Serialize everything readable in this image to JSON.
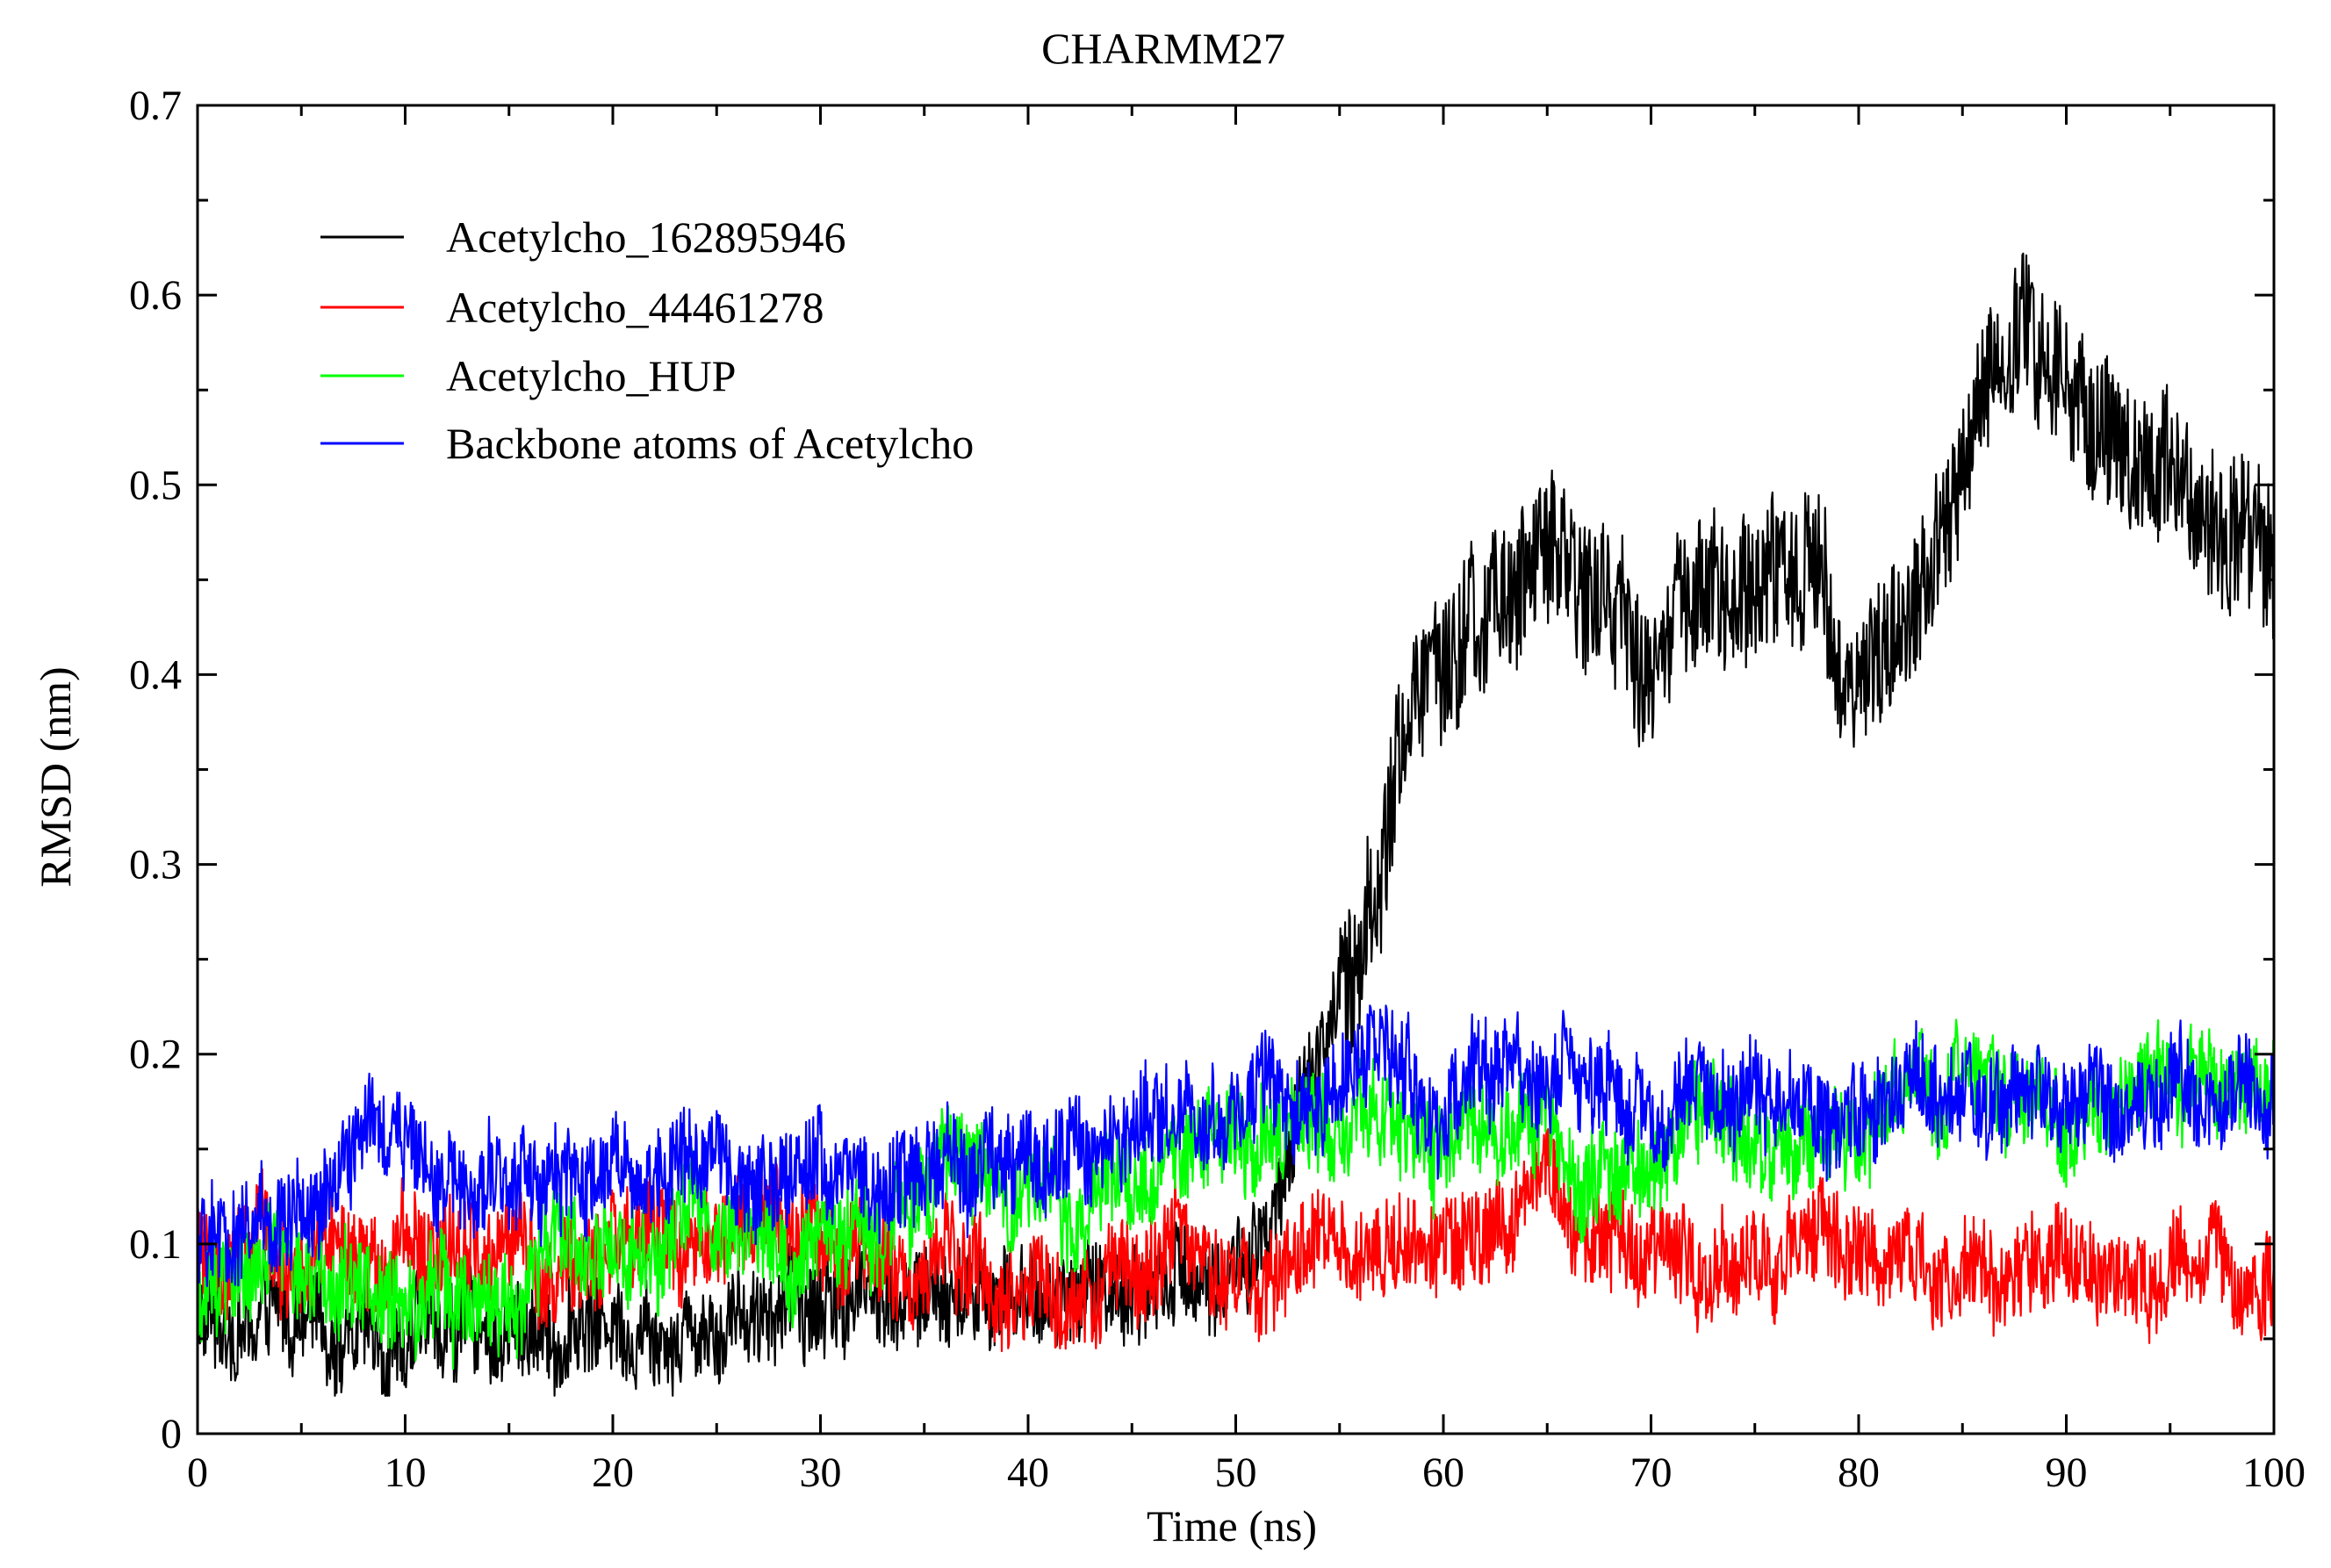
{
  "chart_data": {
    "type": "line",
    "title": "CHARMM27",
    "xlabel": "Time (ns)",
    "ylabel": "RMSD (nm)",
    "xlim": [
      0,
      100
    ],
    "ylim": [
      0,
      0.7
    ],
    "xticks": [
      "0",
      "10",
      "20",
      "30",
      "40",
      "50",
      "60",
      "70",
      "80",
      "90",
      "100"
    ],
    "yticks": [
      "0",
      "0.1",
      "0.2",
      "0.3",
      "0.4",
      "0.5",
      "0.6",
      "0.7"
    ],
    "legend_position": "top-left",
    "noise_amplitude_nm": 0.025,
    "series": [
      {
        "name": "Acetylcho_162895946",
        "color": "#000000",
        "x": [
          0,
          5,
          10,
          15,
          20,
          25,
          30,
          33,
          36,
          40,
          45,
          50,
          52,
          54,
          56,
          57,
          58,
          60,
          62,
          64,
          66,
          68,
          70,
          72,
          75,
          78,
          80,
          82,
          84,
          86,
          88,
          90,
          92,
          94,
          96,
          98,
          100
        ],
        "y": [
          0.06,
          0.05,
          0.06,
          0.055,
          0.06,
          0.07,
          0.075,
          0.08,
          0.07,
          0.07,
          0.08,
          0.09,
          0.1,
          0.2,
          0.27,
          0.3,
          0.37,
          0.41,
          0.42,
          0.46,
          0.45,
          0.44,
          0.4,
          0.44,
          0.45,
          0.46,
          0.4,
          0.43,
          0.46,
          0.55,
          0.57,
          0.55,
          0.53,
          0.52,
          0.5,
          0.49,
          0.47
        ]
      },
      {
        "name": "Acetylcho_44461278",
        "color": "#ff0000",
        "x": [
          0,
          5,
          10,
          15,
          20,
          25,
          30,
          35,
          40,
          45,
          50,
          55,
          60,
          65,
          70,
          75,
          80,
          85,
          90,
          95,
          100
        ],
        "y": [
          0.09,
          0.08,
          0.09,
          0.085,
          0.09,
          0.1,
          0.1,
          0.085,
          0.075,
          0.08,
          0.09,
          0.1,
          0.11,
          0.12,
          0.095,
          0.105,
          0.095,
          0.09,
          0.085,
          0.08,
          0.085
        ]
      },
      {
        "name": "Acetylcho_HUP",
        "color": "#00ff00",
        "x": [
          0,
          5,
          10,
          15,
          20,
          25,
          30,
          35,
          40,
          45,
          50,
          55,
          60,
          65,
          70,
          75,
          80,
          85,
          90,
          95,
          100
        ],
        "y": [
          0.07,
          0.08,
          0.085,
          0.08,
          0.09,
          0.1,
          0.11,
          0.12,
          0.13,
          0.14,
          0.15,
          0.155,
          0.16,
          0.155,
          0.14,
          0.15,
          0.16,
          0.17,
          0.16,
          0.18,
          0.18
        ]
      },
      {
        "name": "Backbone atoms of Acetylcho",
        "color": "#0000ff",
        "x": [
          0,
          3,
          6,
          8,
          10,
          15,
          18,
          20,
          25,
          30,
          35,
          40,
          45,
          50,
          55,
          60,
          65,
          70,
          75,
          80,
          85,
          90,
          95,
          100
        ],
        "y": [
          0.1,
          0.11,
          0.13,
          0.15,
          0.15,
          0.14,
          0.13,
          0.13,
          0.14,
          0.14,
          0.14,
          0.15,
          0.16,
          0.17,
          0.18,
          0.18,
          0.19,
          0.16,
          0.17,
          0.17,
          0.17,
          0.17,
          0.18,
          0.17
        ]
      }
    ]
  }
}
